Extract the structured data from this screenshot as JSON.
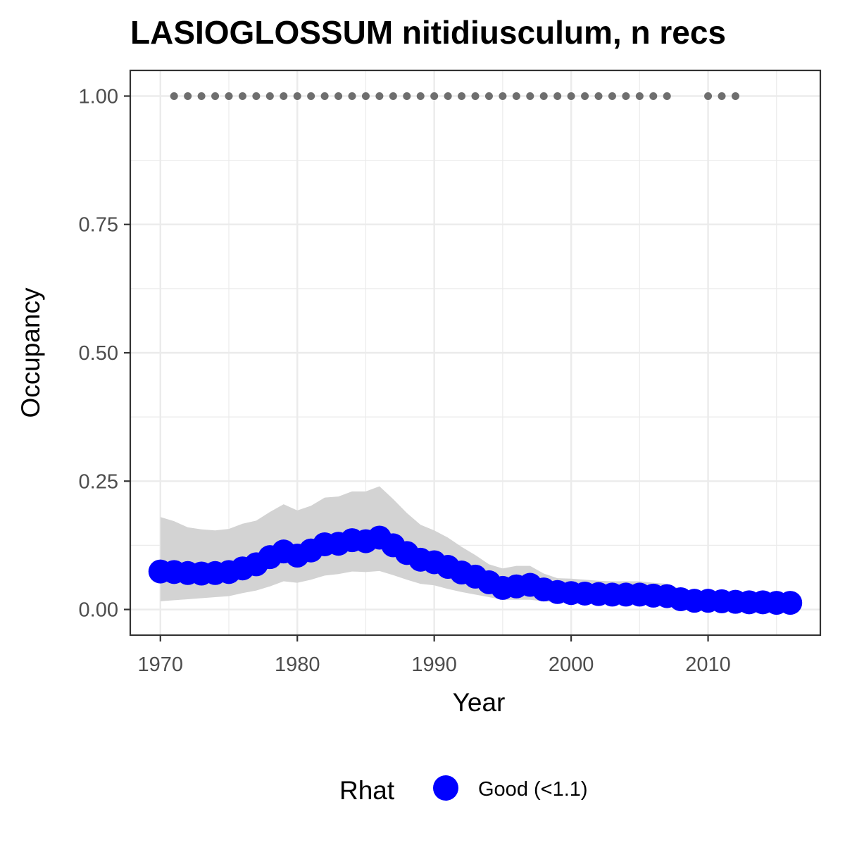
{
  "chart_data": {
    "type": "line",
    "title": "LASIOGLOSSUM nitidiusculum, n recs",
    "xlabel": "Year",
    "ylabel": "Occupancy",
    "xlim": [
      1967.8,
      2018.2
    ],
    "ylim": [
      -0.05,
      1.05
    ],
    "x_ticks": [
      1970,
      1980,
      1990,
      2000,
      2010
    ],
    "x_tick_labels": [
      "1970",
      "1980",
      "1990",
      "2000",
      "2010"
    ],
    "y_ticks": [
      0,
      0.25,
      0.5,
      0.75,
      1.0
    ],
    "y_tick_labels": [
      "0.00",
      "0.25",
      "0.50",
      "0.75",
      "1.00"
    ],
    "grid": true,
    "legend": {
      "title": "Rhat",
      "position": "bottom",
      "entries": [
        {
          "label": "Good (<1.1)",
          "color": "#0000ff"
        }
      ]
    },
    "colors": {
      "estimate": "#0000ff",
      "interval": "#d3d3d3",
      "records": "#6e6e6e",
      "grid": "#ebebeb",
      "border": "#333333"
    },
    "series": [
      {
        "role": "occupancy_estimate",
        "x": [
          1970,
          1971,
          1972,
          1973,
          1974,
          1975,
          1976,
          1977,
          1978,
          1979,
          1980,
          1981,
          1982,
          1983,
          1984,
          1985,
          1986,
          1987,
          1988,
          1989,
          1990,
          1991,
          1992,
          1993,
          1994,
          1995,
          1996,
          1997,
          1998,
          1999,
          2000,
          2001,
          2002,
          2003,
          2004,
          2005,
          2006,
          2007,
          2008,
          2009,
          2010,
          2011,
          2012,
          2013,
          2014,
          2015,
          2016
        ],
        "y": [
          0.074,
          0.073,
          0.071,
          0.07,
          0.071,
          0.073,
          0.08,
          0.088,
          0.102,
          0.113,
          0.105,
          0.115,
          0.127,
          0.128,
          0.135,
          0.133,
          0.14,
          0.125,
          0.11,
          0.097,
          0.092,
          0.083,
          0.072,
          0.064,
          0.053,
          0.042,
          0.045,
          0.048,
          0.039,
          0.034,
          0.032,
          0.031,
          0.03,
          0.029,
          0.029,
          0.029,
          0.027,
          0.026,
          0.02,
          0.017,
          0.017,
          0.016,
          0.015,
          0.014,
          0.014,
          0.013,
          0.013
        ],
        "lower": [
          0.016,
          0.018,
          0.02,
          0.022,
          0.024,
          0.026,
          0.032,
          0.037,
          0.045,
          0.055,
          0.052,
          0.058,
          0.066,
          0.069,
          0.074,
          0.073,
          0.075,
          0.067,
          0.058,
          0.05,
          0.047,
          0.04,
          0.034,
          0.029,
          0.024,
          0.019,
          0.019,
          0.019,
          0.016,
          0.014,
          0.013,
          0.012,
          0.011,
          0.011,
          0.01,
          0.01,
          0.009,
          0.009,
          0.007,
          0.006,
          0.005,
          0.005,
          0.005,
          0.004,
          0.004,
          0.004,
          0.004
        ],
        "upper": [
          0.18,
          0.172,
          0.16,
          0.156,
          0.154,
          0.157,
          0.167,
          0.173,
          0.19,
          0.205,
          0.193,
          0.202,
          0.218,
          0.22,
          0.23,
          0.23,
          0.24,
          0.215,
          0.188,
          0.165,
          0.154,
          0.14,
          0.122,
          0.106,
          0.088,
          0.08,
          0.085,
          0.085,
          0.07,
          0.061,
          0.06,
          0.058,
          0.056,
          0.055,
          0.055,
          0.055,
          0.052,
          0.05,
          0.04,
          0.035,
          0.035,
          0.034,
          0.033,
          0.031,
          0.031,
          0.03,
          0.03
        ]
      },
      {
        "role": "record_years",
        "x": [
          1971,
          1972,
          1973,
          1974,
          1975,
          1976,
          1977,
          1978,
          1979,
          1980,
          1981,
          1982,
          1983,
          1984,
          1985,
          1986,
          1987,
          1988,
          1989,
          1990,
          1991,
          1992,
          1993,
          1994,
          1995,
          1996,
          1997,
          1998,
          1999,
          2000,
          2001,
          2002,
          2003,
          2004,
          2005,
          2006,
          2007,
          2010,
          2011,
          2012
        ],
        "y": 1.0
      }
    ]
  }
}
